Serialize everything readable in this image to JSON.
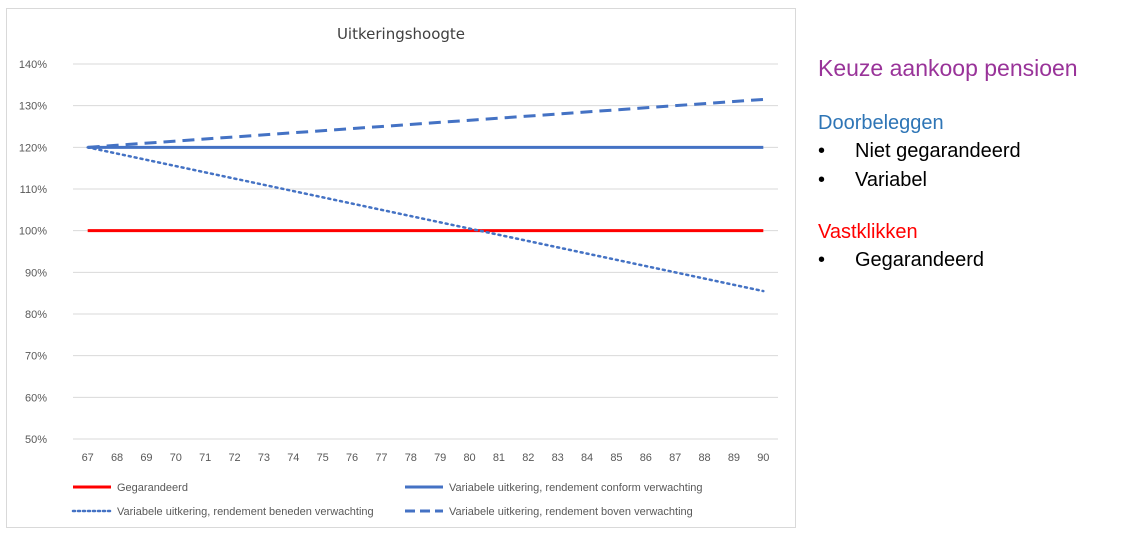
{
  "chart_data": {
    "type": "line",
    "title": "Uitkeringshoogte",
    "xlabel": "",
    "ylabel": "",
    "categories": [
      "67",
      "68",
      "69",
      "70",
      "71",
      "72",
      "73",
      "74",
      "75",
      "76",
      "77",
      "78",
      "79",
      "80",
      "81",
      "82",
      "83",
      "84",
      "85",
      "86",
      "87",
      "88",
      "89",
      "90"
    ],
    "y_ticks": [
      "50%",
      "60%",
      "70%",
      "80%",
      "90%",
      "100%",
      "110%",
      "120%",
      "130%",
      "140%"
    ],
    "ylim": [
      50,
      140
    ],
    "grid": "horizontal",
    "legend_position": "bottom",
    "series": [
      {
        "name": "Gegarandeerd",
        "color": "#ff0000",
        "style": "solid",
        "start": 100,
        "end": 100
      },
      {
        "name": "Variabele uitkering, rendement conform verwachting",
        "color": "#4472c4",
        "style": "solid",
        "start": 120,
        "end": 120
      },
      {
        "name": "Variabele uitkering, rendement beneden verwachting",
        "color": "#4472c4",
        "style": "dotted",
        "start": 120,
        "end": 85.5
      },
      {
        "name": "Variabele uitkering, rendement boven verwachting",
        "color": "#4472c4",
        "style": "dashed",
        "start": 120,
        "end": 131.5
      }
    ]
  },
  "side": {
    "title": "Keuze aankoop pensioen",
    "title_color": "#993399",
    "sections": [
      {
        "heading": "Doorbeleggen",
        "color": "#2e75b6",
        "bullet": "•",
        "items": [
          "Niet gegarandeerd",
          "Variabel"
        ]
      },
      {
        "heading": "Vastklikken",
        "color": "#ff0000",
        "bullet": "•",
        "items": [
          "Gegarandeerd"
        ]
      }
    ]
  }
}
